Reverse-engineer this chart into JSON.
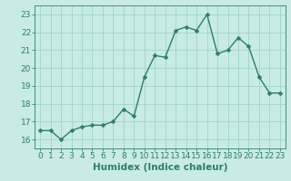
{
  "title": "",
  "xlabel": "Humidex (Indice chaleur)",
  "ylabel": "",
  "x": [
    0,
    1,
    2,
    3,
    4,
    5,
    6,
    7,
    8,
    9,
    10,
    11,
    12,
    13,
    14,
    15,
    16,
    17,
    18,
    19,
    20,
    21,
    22,
    23
  ],
  "y": [
    16.5,
    16.5,
    16.0,
    16.5,
    16.7,
    16.8,
    16.8,
    17.0,
    17.7,
    17.3,
    19.5,
    20.7,
    20.6,
    22.1,
    22.3,
    22.1,
    23.0,
    20.8,
    21.0,
    21.7,
    21.2,
    19.5,
    18.6,
    18.6
  ],
  "line_color": "#2e7d6e",
  "marker": "D",
  "marker_size": 2.5,
  "bg_color": "#c8ebe6",
  "grid_color": "#a0d4ce",
  "ylim": [
    15.5,
    23.5
  ],
  "xlim": [
    -0.5,
    23.5
  ],
  "yticks": [
    16,
    17,
    18,
    19,
    20,
    21,
    22,
    23
  ],
  "xticks": [
    0,
    1,
    2,
    3,
    4,
    5,
    6,
    7,
    8,
    9,
    10,
    11,
    12,
    13,
    14,
    15,
    16,
    17,
    18,
    19,
    20,
    21,
    22,
    23
  ],
  "tick_color": "#2e7d6e",
  "xlabel_fontsize": 7.5,
  "tick_fontsize": 6.5,
  "linewidth": 1.0
}
